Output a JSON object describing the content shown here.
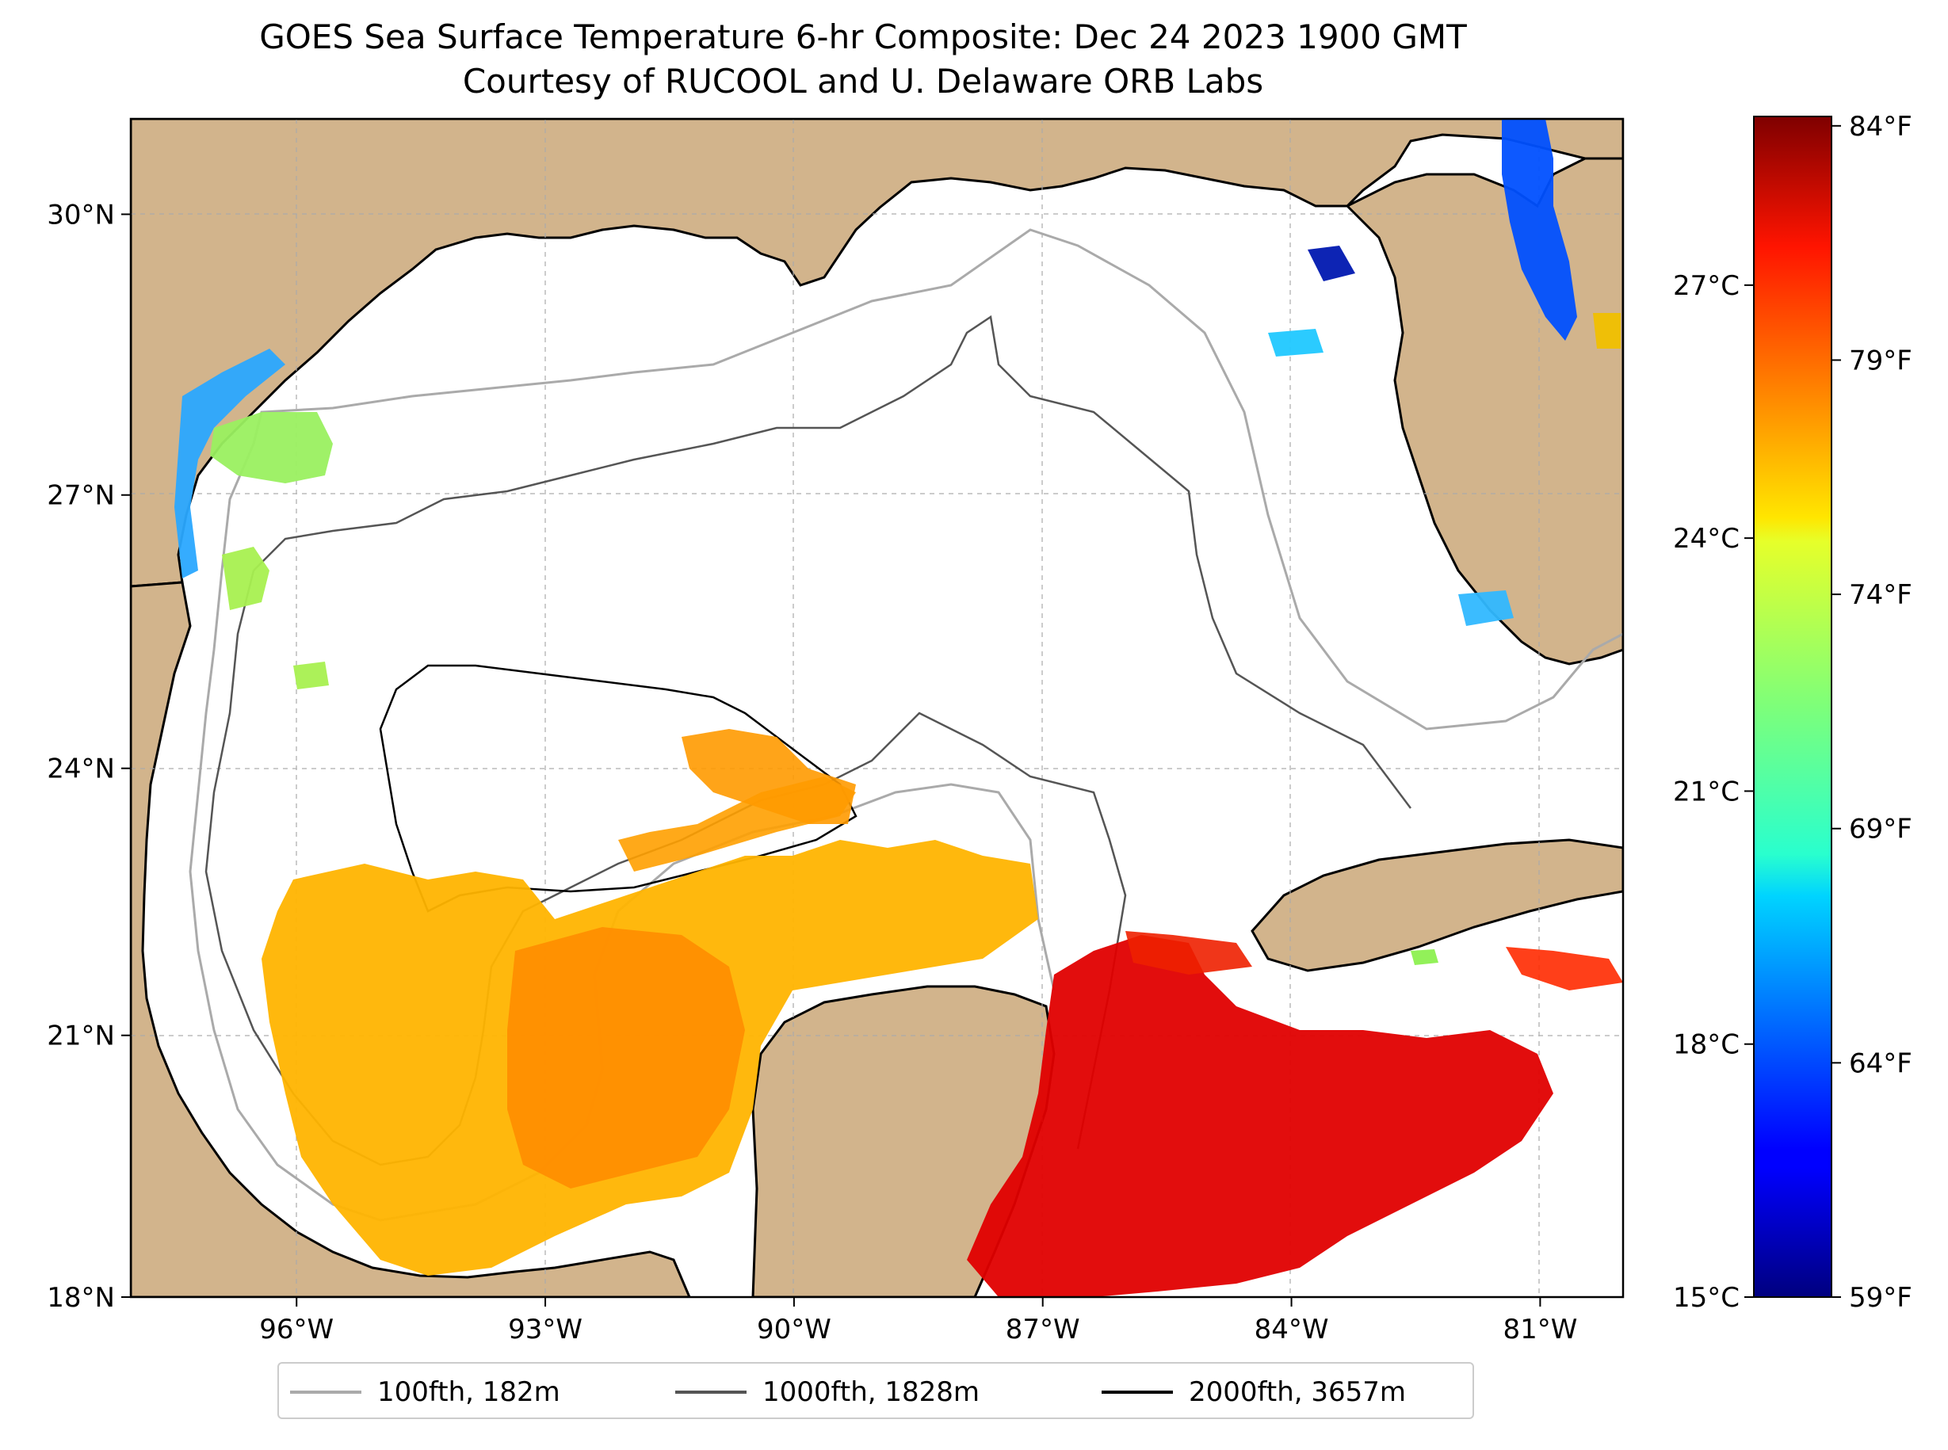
{
  "title": {
    "line1": "GOES Sea Surface Temperature 6-hr Composite: Dec 24 2023 1900 GMT",
    "line2": "Courtesy of RUCOOL and U. Delaware ORB Labs"
  },
  "map": {
    "lon_range": [
      -98,
      -80
    ],
    "lat_range": [
      18,
      31
    ],
    "lon_ticks": [
      {
        "value": -96,
        "label": "96°W"
      },
      {
        "value": -93,
        "label": "93°W"
      },
      {
        "value": -90,
        "label": "90°W"
      },
      {
        "value": -87,
        "label": "87°W"
      },
      {
        "value": -84,
        "label": "84°W"
      },
      {
        "value": -81,
        "label": "81°W"
      }
    ],
    "lat_ticks": [
      {
        "value": 18,
        "label": "18°N"
      },
      {
        "value": 21,
        "label": "21°N"
      },
      {
        "value": 24,
        "label": "24°N"
      },
      {
        "value": 27,
        "label": "27°N"
      },
      {
        "value": 30,
        "label": "30°N"
      }
    ],
    "grid": true,
    "land_color": "#d2b48c",
    "ocean_color": "#ffffff"
  },
  "colorbar": {
    "range_c": [
      15,
      29
    ],
    "celsius_ticks": [
      {
        "value": 15,
        "label": "15°C"
      },
      {
        "value": 18,
        "label": "18°C"
      },
      {
        "value": 21,
        "label": "21°C"
      },
      {
        "value": 24,
        "label": "24°C"
      },
      {
        "value": 27,
        "label": "27°C"
      }
    ],
    "fahrenheit_ticks": [
      {
        "value": 59,
        "label": "59°F"
      },
      {
        "value": 64,
        "label": "64°F"
      },
      {
        "value": 69,
        "label": "69°F"
      },
      {
        "value": 74,
        "label": "74°F"
      },
      {
        "value": 79,
        "label": "79°F"
      },
      {
        "value": 84,
        "label": "84°F"
      }
    ],
    "colormap": "jet"
  },
  "legend": {
    "placement": "bottom-center",
    "items": [
      {
        "label": "100fth, 182m",
        "color": "#aaaaaa"
      },
      {
        "label": "1000fth, 1828m",
        "color": "#555555"
      },
      {
        "label": "2000fth, 3657m",
        "color": "#000000"
      }
    ]
  }
}
